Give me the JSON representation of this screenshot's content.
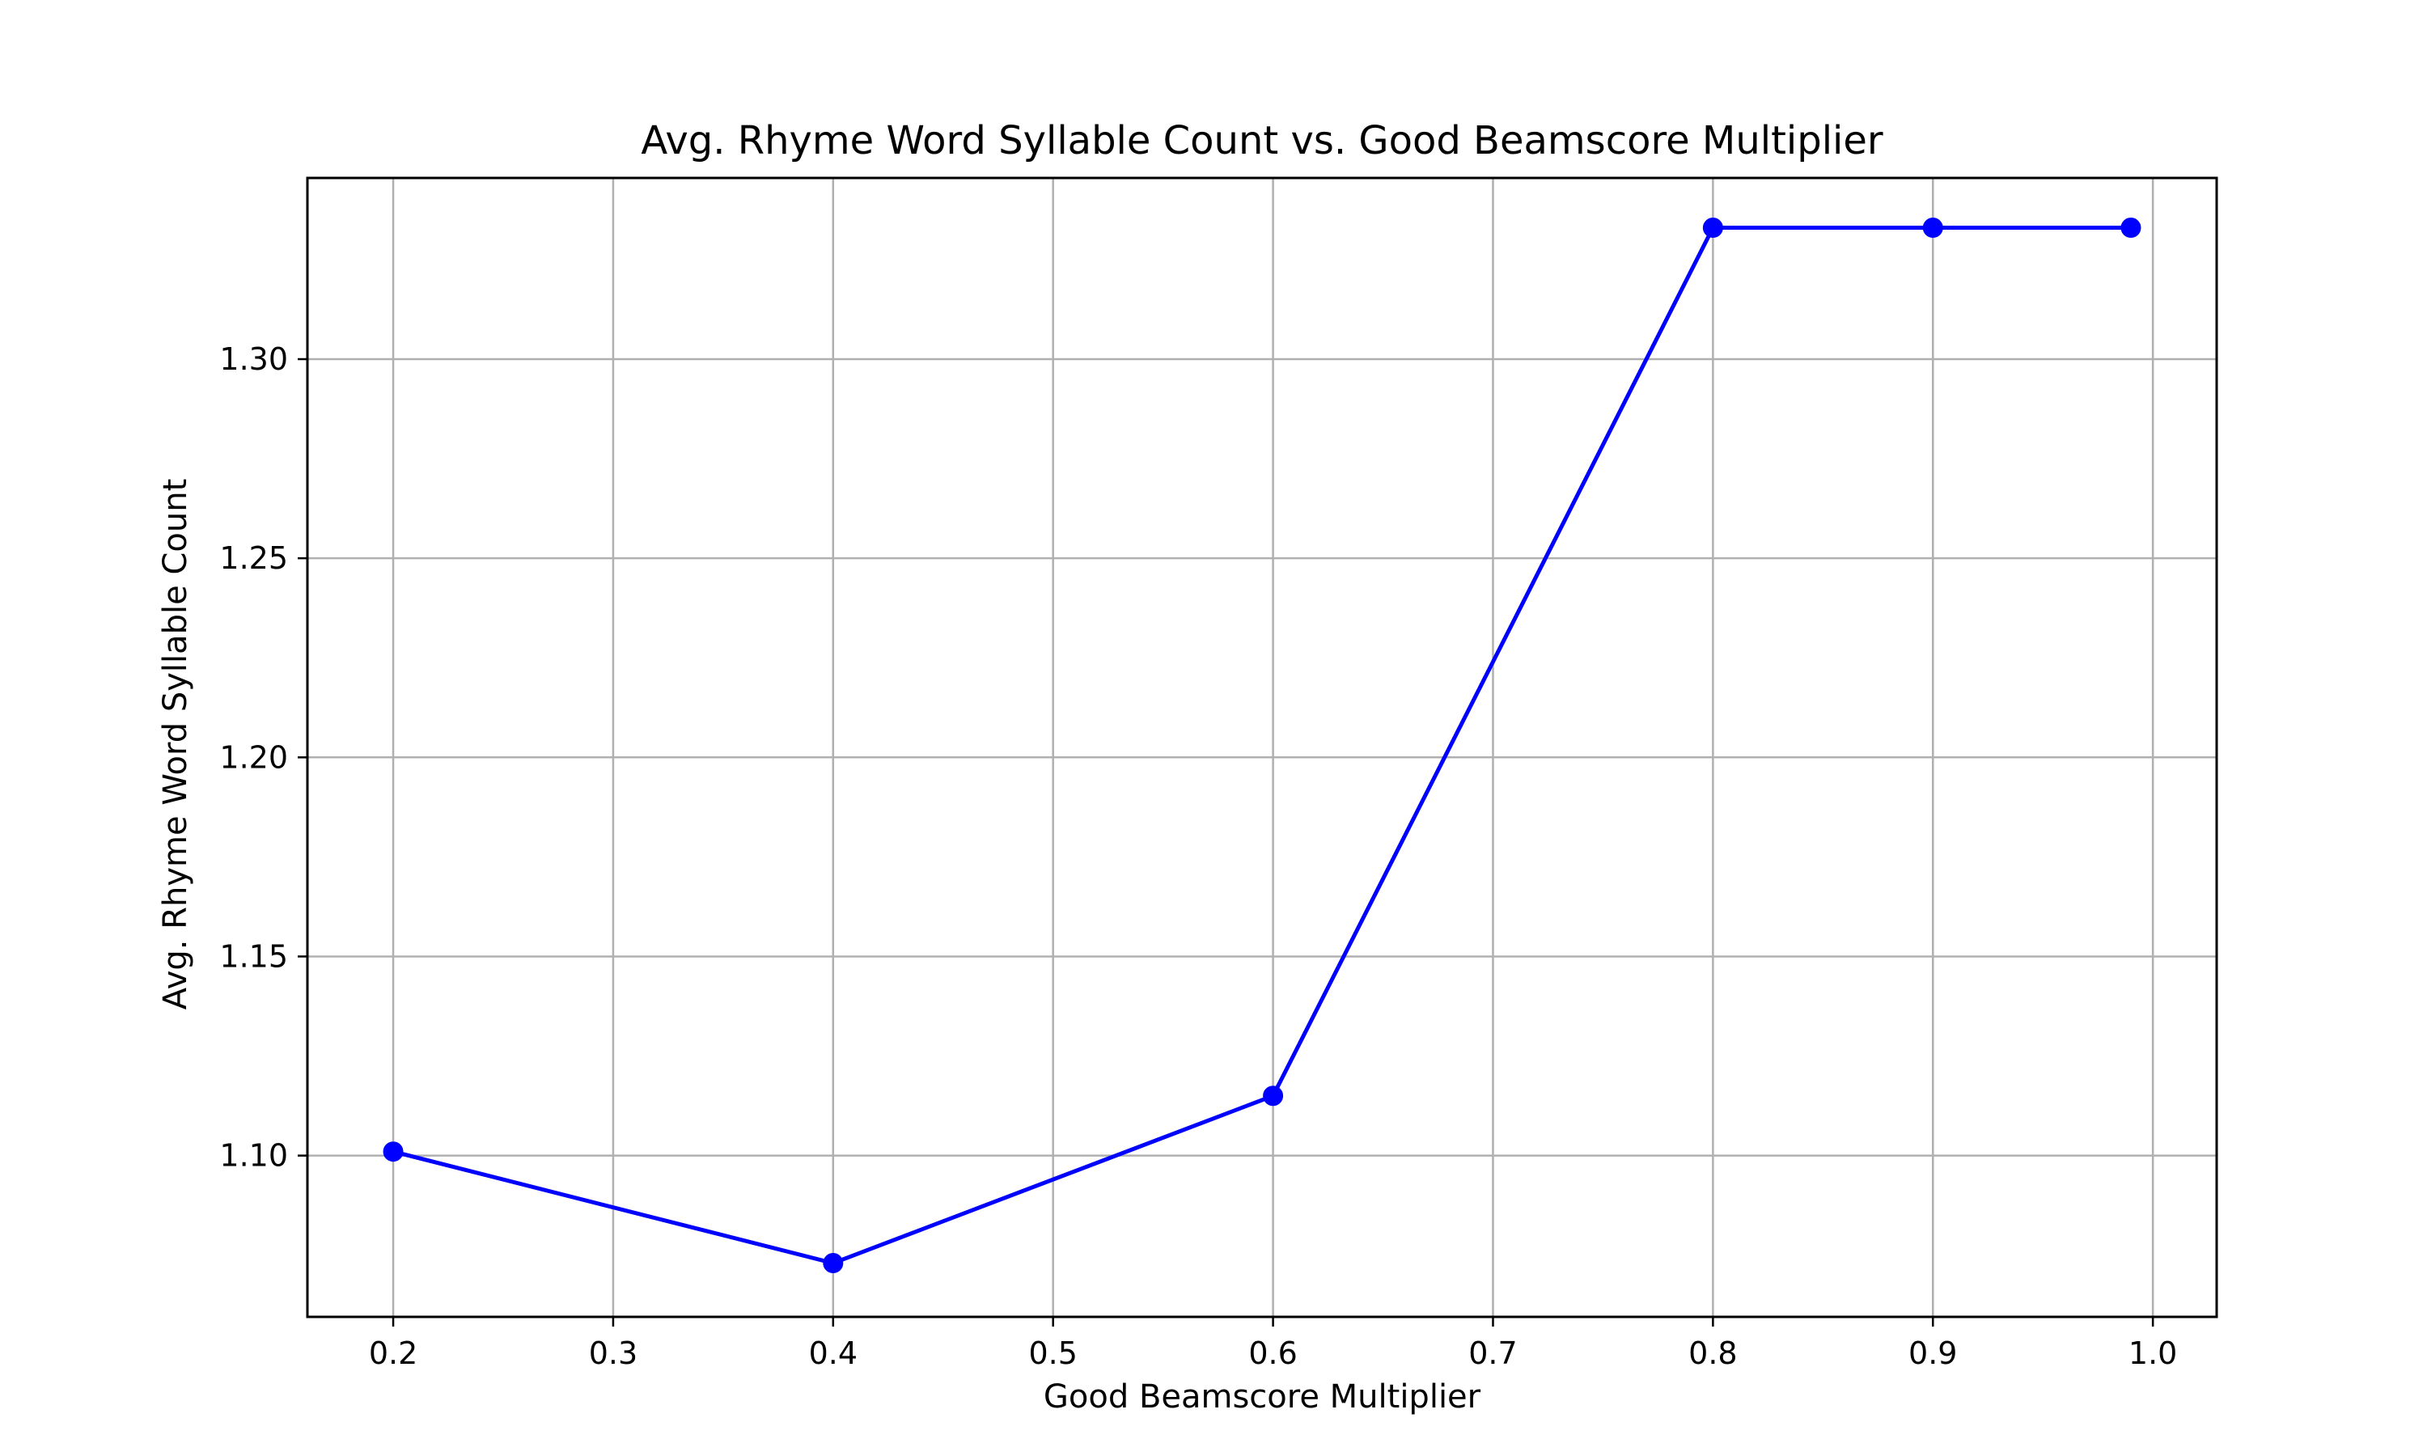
{
  "chart_data": {
    "type": "line",
    "title": "Avg. Rhyme Word Syllable Count vs. Good Beamscore Multiplier",
    "xlabel": "Good Beamscore Multiplier",
    "ylabel": "Avg. Rhyme Word Syllable Count",
    "xlim": [
      0.161,
      1.029
    ],
    "ylim": [
      1.0595,
      1.3455
    ],
    "x_ticks": [
      0.2,
      0.3,
      0.4,
      0.5,
      0.6,
      0.7,
      0.8,
      0.9,
      1.0
    ],
    "x_tick_labels": [
      "0.2",
      "0.3",
      "0.4",
      "0.5",
      "0.6",
      "0.7",
      "0.8",
      "0.9",
      "1.0"
    ],
    "y_ticks": [
      1.1,
      1.15,
      1.2,
      1.25,
      1.3
    ],
    "y_tick_labels": [
      "1.10",
      "1.15",
      "1.20",
      "1.25",
      "1.30"
    ],
    "grid": true,
    "series": [
      {
        "color": "#0000ff",
        "marker": "circle",
        "x": [
          0.2,
          0.4,
          0.6,
          0.8,
          0.9,
          0.99
        ],
        "values": [
          1.101,
          1.073,
          1.115,
          1.333,
          1.333,
          1.333
        ]
      }
    ]
  }
}
